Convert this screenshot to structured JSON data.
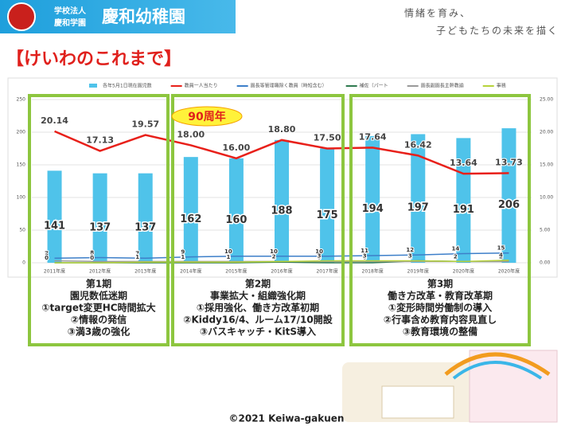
{
  "header": {
    "org": "学校法人",
    "group": "慶和学園",
    "school": "慶和幼稚園",
    "slogan": [
      "情緒を育み、",
      "子どもたちの未来を描く"
    ]
  },
  "title": "【けいわのこれまで】",
  "chart_data": {
    "type": "combo",
    "categories": [
      "2011年度",
      "2012年度",
      "2013年度",
      "2014年度",
      "2015年度",
      "2016年度",
      "2017年度",
      "2018年度",
      "2019年度",
      "2020年度",
      "2020年度"
    ],
    "ylim": [
      0,
      250
    ],
    "yticks": [
      0,
      50,
      100,
      150,
      200,
      250
    ],
    "y2lim": [
      0,
      25
    ],
    "y2ticks": [
      {
        "value": 0,
        "label": "0.00"
      },
      {
        "value": 5,
        "label": "5.00"
      },
      {
        "value": 10,
        "label": "10.00"
      },
      {
        "value": 15,
        "label": "15.00"
      },
      {
        "value": 20,
        "label": "20.00"
      },
      {
        "value": 25,
        "label": "25.00"
      }
    ],
    "grid": true,
    "series": [
      {
        "name": "各年5月1日現在園児数",
        "type": "bar",
        "color": "#4fc3ea",
        "values": [
          141,
          137,
          137,
          162,
          160,
          188,
          175,
          194,
          197,
          191,
          206
        ]
      },
      {
        "name": "教員一人当たり",
        "type": "line",
        "axis": "y2",
        "color": "#e8201a",
        "values": [
          20.14,
          17.13,
          19.57,
          18.0,
          16.0,
          18.8,
          17.5,
          17.64,
          16.42,
          13.64,
          13.73
        ],
        "value_labels": [
          "20.14",
          "17.13",
          "19.57",
          "18.00",
          "16.00",
          "18.80",
          "17.50",
          "17.64",
          "16.42",
          "13.64",
          "13.73"
        ]
      },
      {
        "name": "園長等管理職除く教員（時短含む）",
        "type": "line",
        "color": "#3d7fc9",
        "values": [
          7,
          8,
          7,
          9,
          10,
          10,
          10,
          11,
          12,
          14,
          15
        ]
      },
      {
        "name": "補佐（パート",
        "type": "line",
        "color": "#2f7a4f",
        "values": [
          0,
          0,
          0,
          0,
          0,
          1,
          0,
          0,
          3,
          2,
          2
        ]
      },
      {
        "name": "園長副園長主幹教諭",
        "type": "line",
        "color": "#9a9a9a",
        "values": [
          3,
          2,
          2,
          2,
          2,
          2,
          2,
          2,
          2,
          2,
          2
        ]
      },
      {
        "name": "事務",
        "type": "line",
        "color": "#b7d33a",
        "values": [
          0,
          0,
          1,
          1,
          1,
          2,
          3,
          3,
          3,
          2,
          4
        ]
      }
    ]
  },
  "badge": "90周年",
  "periods": [
    {
      "title": "第1期",
      "lines": [
        "園児数低迷期",
        "①target変更HC時間拡大",
        "②情報の発信",
        "③満3歳の強化"
      ]
    },
    {
      "title": "第2期",
      "lines": [
        "事業拡大・組織強化期",
        "①採用強化、働き方改革初期",
        "②Kiddy16/4、ルーム17/10開設",
        "③バスキャッチ・KitS導入"
      ]
    },
    {
      "title": "第3期",
      "lines": [
        "働き方改革・教育改革期",
        "①変形時間労働制の導入",
        "②行事含め教育内容見直し",
        "③教育環境の整備"
      ]
    }
  ],
  "footer": "©2021  Keiwa-gakuen"
}
